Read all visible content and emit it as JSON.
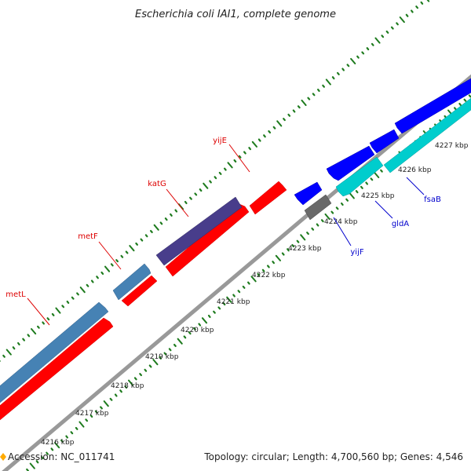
{
  "title": "Escherichia coli IAI1, complete genome",
  "footer": {
    "accession": "Accession: NC_011741",
    "summary": "Topology: circular; Length: 4,700,560 bp; Genes: 4,546"
  },
  "colors": {
    "forward_gene": "#ff0000",
    "reverse_gene": "#0000ff",
    "steelblue_gene": "#4682b4",
    "darkslate_gene": "#483d8b",
    "cyan_gene": "#00cdcd",
    "gray_gene": "#696969",
    "backbone": "#999999",
    "ticks": "#1e7b1e",
    "forward_label": "#dd0000",
    "reverse_label": "#0000cc"
  },
  "scale_labels": [
    {
      "text": "4216 kbp",
      "pos": 4216
    },
    {
      "text": "4217 kbp",
      "pos": 4217
    },
    {
      "text": "4218 kbp",
      "pos": 4218
    },
    {
      "text": "4219 kbp",
      "pos": 4219
    },
    {
      "text": "4220 kbp",
      "pos": 4220
    },
    {
      "text": "4221 kbp",
      "pos": 4221
    },
    {
      "text": "4222 kbp",
      "pos": 4222
    },
    {
      "text": "4223 kbp",
      "pos": 4223
    },
    {
      "text": "4224 kbp",
      "pos": 4224
    },
    {
      "text": "4225 kbp",
      "pos": 4225
    },
    {
      "text": "4226 kbp",
      "pos": 4226
    },
    {
      "text": "4227 kbp",
      "pos": 4227
    }
  ],
  "gene_labels": [
    {
      "text": "metL",
      "strand": "forward"
    },
    {
      "text": "metF",
      "strand": "forward"
    },
    {
      "text": "katG",
      "strand": "forward"
    },
    {
      "text": "yijE",
      "strand": "forward"
    },
    {
      "text": "yijF",
      "strand": "reverse"
    },
    {
      "text": "gldA",
      "strand": "reverse"
    },
    {
      "text": "fsaB",
      "strand": "reverse"
    }
  ]
}
